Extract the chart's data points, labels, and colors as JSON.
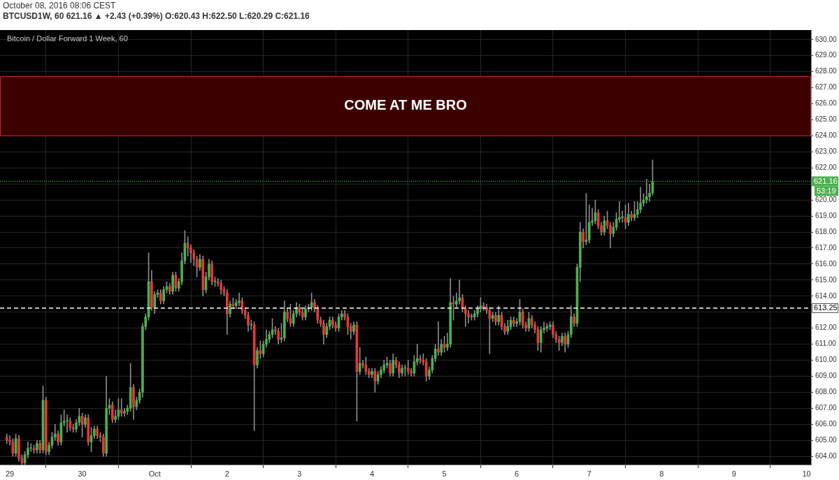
{
  "chart_data": {
    "type": "candlestick",
    "title": "Bitcoin / Dollar Forward 1 Week, 60",
    "subtitle": "BTCUSD1W, 60  621.16 ▲ +2.43 (+0.39%) O:620.43 H:622.50 L:620.29 C:621.16",
    "annotations": [
      "October 08, 2016 08:06 CEST",
      "53:19"
    ],
    "grid": true,
    "xlim": [
      "2016-09-28T20:45",
      "2016-10-10T01:30"
    ],
    "xticks": [
      {
        "value": "2016-09-29",
        "label": "29"
      },
      {
        "value": "2016-09-30",
        "label": "30"
      },
      {
        "value": "2016-10-01",
        "label": "Oct"
      },
      {
        "value": "2016-10-02",
        "label": "2"
      },
      {
        "value": "2016-10-03",
        "label": "3"
      },
      {
        "value": "2016-10-04",
        "label": "4"
      },
      {
        "value": "2016-10-05",
        "label": "5"
      },
      {
        "value": "2016-10-06",
        "label": "6"
      },
      {
        "value": "2016-10-07",
        "label": "7"
      },
      {
        "value": "2016-10-08",
        "label": "8"
      },
      {
        "value": "2016-10-09",
        "label": "9"
      },
      {
        "value": "2016-10-10",
        "label": "10"
      }
    ],
    "ylim": [
      603.45,
      630.6
    ],
    "yticks": [
      {
        "value": 604,
        "label": "604.00"
      },
      {
        "value": 605,
        "label": "605.00"
      },
      {
        "value": 606,
        "label": "606.00"
      },
      {
        "value": 607,
        "label": "607.00"
      },
      {
        "value": 608,
        "label": "608.00"
      },
      {
        "value": 609,
        "label": "609.00"
      },
      {
        "value": 610,
        "label": "610.00"
      },
      {
        "value": 611,
        "label": "611.00"
      },
      {
        "value": 612,
        "label": "612.00"
      },
      {
        "value": 613,
        "label": null
      },
      {
        "value": 614,
        "label": "614.00"
      },
      {
        "value": 615,
        "label": "615.00"
      },
      {
        "value": 616,
        "label": "616.00"
      },
      {
        "value": 617,
        "label": "617.00"
      },
      {
        "value": 618,
        "label": "618.00"
      },
      {
        "value": 619,
        "label": "619.00"
      },
      {
        "value": 620,
        "label": "620.00"
      },
      {
        "value": 621,
        "label": null
      },
      {
        "value": 622,
        "label": "622.00"
      },
      {
        "value": 623,
        "label": "623.00"
      },
      {
        "value": 624,
        "label": "624.00"
      },
      {
        "value": 625,
        "label": "625.00"
      },
      {
        "value": 626,
        "label": "626.00"
      },
      {
        "value": 627,
        "label": "627.00"
      },
      {
        "value": 628,
        "label": "628.00"
      },
      {
        "value": 629,
        "label": "629.00"
      },
      {
        "value": 630,
        "label": "630.00"
      }
    ],
    "bands": [
      {
        "axis": "y",
        "from": 624,
        "to": 627.7,
        "label": "COME AT ME BRO",
        "color": "#3d0000"
      }
    ],
    "ref_lines": [
      {
        "axis": "y",
        "value": 613.25,
        "label": "613.25",
        "color": "#ffffff",
        "line_style": "dashed"
      },
      {
        "axis": "y",
        "value": 621.16,
        "label": "621.16",
        "color": "#4caf50",
        "line_style": "dotted"
      }
    ],
    "x": [
      "2016-09-28T23:00",
      "2016-09-29T00:00",
      "2016-09-29T01:00",
      "2016-09-29T02:00",
      "2016-09-29T03:00",
      "2016-09-29T04:00",
      "2016-09-29T05:00",
      "2016-09-29T06:00",
      "2016-09-29T07:00",
      "2016-09-29T08:00",
      "2016-09-29T09:00",
      "2016-09-29T10:00",
      "2016-09-29T11:00",
      "2016-09-29T12:00",
      "2016-09-29T13:00",
      "2016-09-29T14:00",
      "2016-09-29T15:00",
      "2016-09-29T16:00",
      "2016-09-29T17:00",
      "2016-09-29T18:00",
      "2016-09-29T19:00",
      "2016-09-29T20:00",
      "2016-09-29T21:00",
      "2016-09-29T22:00",
      "2016-09-29T23:00",
      "2016-09-30T00:00",
      "2016-09-30T01:00",
      "2016-09-30T02:00",
      "2016-09-30T03:00",
      "2016-09-30T04:00",
      "2016-09-30T05:00",
      "2016-09-30T06:00",
      "2016-09-30T07:00",
      "2016-09-30T08:00",
      "2016-09-30T09:00",
      "2016-09-30T10:00",
      "2016-09-30T11:00",
      "2016-09-30T12:00",
      "2016-09-30T13:00",
      "2016-09-30T14:00",
      "2016-09-30T15:00",
      "2016-09-30T16:00",
      "2016-09-30T17:00",
      "2016-09-30T18:00",
      "2016-09-30T19:00",
      "2016-09-30T20:00",
      "2016-09-30T21:00",
      "2016-09-30T22:00",
      "2016-09-30T23:00",
      "2016-10-01T00:00",
      "2016-10-01T01:00",
      "2016-10-01T02:00",
      "2016-10-01T03:00",
      "2016-10-01T04:00",
      "2016-10-01T05:00",
      "2016-10-01T06:00",
      "2016-10-01T07:00",
      "2016-10-01T08:00",
      "2016-10-01T09:00",
      "2016-10-01T10:00",
      "2016-10-01T11:00",
      "2016-10-01T12:00",
      "2016-10-01T13:00",
      "2016-10-01T14:00",
      "2016-10-01T15:00",
      "2016-10-01T16:00",
      "2016-10-01T17:00",
      "2016-10-01T18:00",
      "2016-10-01T19:00",
      "2016-10-01T20:00",
      "2016-10-01T21:00",
      "2016-10-01T22:00",
      "2016-10-01T23:00",
      "2016-10-02T00:00",
      "2016-10-02T01:00",
      "2016-10-02T02:00",
      "2016-10-02T03:00",
      "2016-10-02T04:00",
      "2016-10-02T05:00",
      "2016-10-02T06:00",
      "2016-10-02T07:00",
      "2016-10-02T08:00",
      "2016-10-02T09:00",
      "2016-10-02T10:00",
      "2016-10-02T11:00",
      "2016-10-02T12:00",
      "2016-10-02T13:00",
      "2016-10-02T14:00",
      "2016-10-02T15:00",
      "2016-10-02T16:00",
      "2016-10-02T17:00",
      "2016-10-02T18:00",
      "2016-10-02T19:00",
      "2016-10-02T20:00",
      "2016-10-02T21:00",
      "2016-10-02T22:00",
      "2016-10-02T23:00",
      "2016-10-03T00:00",
      "2016-10-03T01:00",
      "2016-10-03T02:00",
      "2016-10-03T03:00",
      "2016-10-03T04:00",
      "2016-10-03T05:00",
      "2016-10-03T06:00",
      "2016-10-03T07:00",
      "2016-10-03T08:00",
      "2016-10-03T09:00",
      "2016-10-03T10:00",
      "2016-10-03T11:00",
      "2016-10-03T12:00",
      "2016-10-03T13:00",
      "2016-10-03T14:00",
      "2016-10-03T15:00",
      "2016-10-03T16:00",
      "2016-10-03T17:00",
      "2016-10-03T18:00",
      "2016-10-03T19:00",
      "2016-10-03T20:00",
      "2016-10-03T21:00",
      "2016-10-03T22:00",
      "2016-10-03T23:00",
      "2016-10-04T00:00",
      "2016-10-04T01:00",
      "2016-10-04T02:00",
      "2016-10-04T03:00",
      "2016-10-04T04:00",
      "2016-10-04T05:00",
      "2016-10-04T06:00",
      "2016-10-04T07:00",
      "2016-10-04T08:00",
      "2016-10-04T09:00",
      "2016-10-04T10:00",
      "2016-10-04T11:00",
      "2016-10-04T12:00",
      "2016-10-04T13:00",
      "2016-10-04T14:00",
      "2016-10-04T15:00",
      "2016-10-04T16:00",
      "2016-10-04T17:00",
      "2016-10-04T18:00",
      "2016-10-04T19:00",
      "2016-10-04T20:00",
      "2016-10-04T21:00",
      "2016-10-04T22:00",
      "2016-10-04T23:00",
      "2016-10-05T00:00",
      "2016-10-05T01:00",
      "2016-10-05T02:00",
      "2016-10-05T03:00",
      "2016-10-05T04:00",
      "2016-10-05T05:00",
      "2016-10-05T06:00",
      "2016-10-05T07:00",
      "2016-10-05T08:00",
      "2016-10-05T09:00",
      "2016-10-05T10:00",
      "2016-10-05T11:00",
      "2016-10-05T12:00",
      "2016-10-05T13:00",
      "2016-10-05T14:00",
      "2016-10-05T15:00",
      "2016-10-05T16:00",
      "2016-10-05T17:00",
      "2016-10-05T18:00",
      "2016-10-05T19:00",
      "2016-10-05T20:00",
      "2016-10-05T21:00",
      "2016-10-05T22:00",
      "2016-10-05T23:00",
      "2016-10-06T00:00",
      "2016-10-06T01:00",
      "2016-10-06T02:00",
      "2016-10-06T03:00",
      "2016-10-06T04:00",
      "2016-10-06T05:00",
      "2016-10-06T06:00",
      "2016-10-06T07:00",
      "2016-10-06T08:00",
      "2016-10-06T09:00",
      "2016-10-06T10:00",
      "2016-10-06T11:00",
      "2016-10-06T12:00",
      "2016-10-06T13:00",
      "2016-10-06T14:00",
      "2016-10-06T15:00",
      "2016-10-06T16:00",
      "2016-10-06T17:00",
      "2016-10-06T18:00",
      "2016-10-06T19:00",
      "2016-10-06T20:00",
      "2016-10-06T21:00",
      "2016-10-06T22:00",
      "2016-10-06T23:00",
      "2016-10-07T00:00",
      "2016-10-07T01:00",
      "2016-10-07T02:00",
      "2016-10-07T03:00",
      "2016-10-07T04:00",
      "2016-10-07T05:00",
      "2016-10-07T06:00",
      "2016-10-07T07:00",
      "2016-10-07T08:00",
      "2016-10-07T09:00",
      "2016-10-07T10:00",
      "2016-10-07T11:00",
      "2016-10-07T12:00",
      "2016-10-07T13:00",
      "2016-10-07T14:00",
      "2016-10-07T15:00",
      "2016-10-07T16:00",
      "2016-10-07T17:00",
      "2016-10-07T18:00",
      "2016-10-07T19:00",
      "2016-10-07T20:00",
      "2016-10-07T21:00"
    ],
    "ohlc": [
      [
        605.2,
        605.4,
        604.8,
        605.0
      ],
      [
        605.0,
        605.3,
        604.7,
        604.9
      ],
      [
        604.9,
        605.1,
        604.0,
        604.2
      ],
      [
        604.2,
        605.4,
        604.0,
        605.1
      ],
      [
        605.1,
        605.3,
        603.7,
        603.9
      ],
      [
        603.9,
        604.1,
        603.5,
        603.6
      ],
      [
        603.6,
        604.3,
        603.5,
        604.1
      ],
      [
        604.1,
        604.9,
        603.9,
        604.5
      ],
      [
        604.5,
        604.8,
        604.3,
        604.5
      ],
      [
        604.5,
        604.7,
        604.2,
        604.4
      ],
      [
        604.4,
        605.0,
        604.2,
        604.8
      ],
      [
        604.8,
        605.0,
        604.2,
        604.4
      ],
      [
        604.4,
        608.4,
        604.2,
        607.5
      ],
      [
        607.5,
        607.7,
        604.1,
        604.3
      ],
      [
        604.3,
        604.9,
        604.1,
        604.7
      ],
      [
        604.7,
        605.5,
        604.5,
        605.2
      ],
      [
        605.2,
        606.0,
        605.0,
        605.4
      ],
      [
        605.4,
        605.6,
        604.7,
        604.9
      ],
      [
        604.9,
        606.6,
        604.7,
        606.1
      ],
      [
        606.1,
        606.9,
        605.9,
        606.2
      ],
      [
        606.2,
        606.6,
        605.5,
        606.2
      ],
      [
        606.2,
        606.4,
        605.6,
        605.8
      ],
      [
        605.8,
        606.0,
        605.5,
        605.7
      ],
      [
        605.7,
        606.3,
        605.5,
        606.1
      ],
      [
        606.1,
        607.0,
        605.9,
        606.5
      ],
      [
        606.5,
        606.7,
        605.2,
        606.0
      ],
      [
        606.0,
        606.6,
        605.8,
        606.4
      ],
      [
        606.4,
        606.6,
        604.7,
        604.9
      ],
      [
        604.9,
        605.8,
        604.3,
        605.3
      ],
      [
        605.3,
        605.9,
        605.1,
        605.7
      ],
      [
        605.7,
        605.9,
        605.1,
        605.3
      ],
      [
        605.3,
        605.5,
        604.9,
        605.2
      ],
      [
        605.2,
        605.4,
        604.0,
        604.2
      ],
      [
        604.2,
        609.0,
        604.0,
        607.0
      ],
      [
        607.0,
        607.6,
        606.6,
        607.2
      ],
      [
        607.2,
        607.4,
        606.1,
        606.3
      ],
      [
        606.3,
        606.9,
        606.1,
        606.5
      ],
      [
        606.5,
        607.6,
        606.3,
        606.9
      ],
      [
        606.9,
        607.6,
        606.5,
        606.7
      ],
      [
        606.7,
        607.0,
        606.5,
        606.8
      ],
      [
        606.8,
        607.2,
        606.6,
        607.0
      ],
      [
        607.0,
        609.8,
        606.8,
        608.3
      ],
      [
        608.3,
        608.5,
        606.3,
        607.1
      ],
      [
        607.1,
        607.7,
        606.9,
        607.5
      ],
      [
        607.5,
        608.2,
        607.3,
        608.0
      ],
      [
        608.0,
        612.3,
        607.7,
        612.1
      ],
      [
        612.1,
        612.9,
        611.9,
        612.7
      ],
      [
        612.7,
        616.7,
        612.5,
        614.9
      ],
      [
        614.9,
        615.6,
        613.1,
        613.3
      ],
      [
        613.3,
        614.3,
        612.9,
        614.1
      ],
      [
        614.1,
        614.4,
        613.9,
        614.2
      ],
      [
        614.2,
        614.4,
        613.5,
        613.7
      ],
      [
        613.7,
        614.6,
        613.5,
        614.4
      ],
      [
        614.4,
        614.9,
        614.2,
        614.6
      ],
      [
        614.6,
        614.8,
        614.1,
        614.3
      ],
      [
        614.3,
        615.5,
        614.1,
        615.3
      ],
      [
        615.3,
        615.5,
        614.3,
        614.5
      ],
      [
        614.5,
        615.1,
        614.3,
        614.9
      ],
      [
        614.9,
        616.7,
        614.7,
        616.2
      ],
      [
        616.2,
        618.1,
        616.0,
        617.3
      ],
      [
        617.3,
        617.7,
        616.5,
        617.0
      ],
      [
        617.0,
        617.2,
        616.1,
        616.7
      ],
      [
        616.7,
        616.9,
        615.9,
        616.3
      ],
      [
        616.3,
        616.5,
        615.2,
        615.8
      ],
      [
        615.8,
        616.6,
        615.6,
        616.3
      ],
      [
        616.3,
        616.5,
        614.0,
        614.4
      ],
      [
        614.4,
        615.5,
        614.2,
        615.2
      ],
      [
        615.2,
        616.3,
        615.0,
        616.0
      ],
      [
        616.0,
        616.2,
        614.7,
        614.9
      ],
      [
        614.9,
        615.2,
        614.6,
        614.9
      ],
      [
        614.9,
        615.1,
        614.6,
        614.8
      ],
      [
        614.8,
        615.0,
        614.1,
        614.4
      ],
      [
        614.4,
        614.6,
        614.0,
        614.2
      ],
      [
        614.2,
        614.4,
        611.6,
        612.9
      ],
      [
        612.9,
        613.7,
        612.7,
        613.5
      ],
      [
        613.5,
        613.9,
        613.2,
        613.4
      ],
      [
        613.4,
        613.8,
        613.2,
        613.6
      ],
      [
        613.6,
        614.2,
        613.4,
        613.7
      ],
      [
        613.7,
        613.9,
        612.9,
        613.1
      ],
      [
        613.1,
        613.3,
        612.6,
        612.8
      ],
      [
        612.8,
        613.0,
        611.8,
        612.2
      ],
      [
        612.2,
        612.5,
        611.9,
        612.2
      ],
      [
        612.2,
        612.4,
        605.6,
        609.7
      ],
      [
        609.7,
        610.8,
        609.5,
        610.6
      ],
      [
        610.6,
        611.2,
        610.1,
        610.4
      ],
      [
        610.4,
        611.2,
        610.2,
        611.0
      ],
      [
        611.0,
        611.9,
        610.8,
        611.3
      ],
      [
        611.3,
        611.8,
        611.1,
        611.6
      ],
      [
        611.6,
        612.6,
        611.4,
        611.9
      ],
      [
        611.9,
        612.1,
        611.6,
        611.8
      ],
      [
        611.8,
        612.0,
        611.0,
        611.3
      ],
      [
        611.3,
        612.3,
        611.1,
        611.4
      ],
      [
        611.4,
        613.7,
        611.2,
        613.0
      ],
      [
        613.0,
        613.2,
        612.4,
        612.6
      ],
      [
        612.6,
        613.5,
        612.1,
        612.3
      ],
      [
        612.3,
        613.1,
        612.1,
        612.9
      ],
      [
        612.9,
        613.6,
        612.7,
        613.3
      ],
      [
        613.3,
        613.5,
        612.8,
        613.0
      ],
      [
        613.0,
        613.2,
        612.5,
        612.7
      ],
      [
        612.7,
        613.4,
        612.5,
        613.2
      ],
      [
        613.2,
        613.5,
        613.0,
        613.3
      ],
      [
        613.3,
        614.2,
        613.1,
        613.6
      ],
      [
        613.6,
        613.8,
        613.0,
        613.2
      ],
      [
        613.2,
        613.4,
        612.3,
        612.5
      ],
      [
        612.5,
        612.7,
        612.1,
        612.3
      ],
      [
        612.3,
        612.5,
        611.0,
        611.6
      ],
      [
        611.6,
        612.3,
        611.4,
        612.1
      ],
      [
        612.1,
        612.7,
        611.9,
        612.5
      ],
      [
        612.5,
        612.7,
        612.0,
        612.2
      ],
      [
        612.2,
        612.4,
        611.8,
        612.0
      ],
      [
        612.0,
        612.9,
        611.8,
        612.7
      ],
      [
        612.7,
        613.1,
        612.5,
        612.9
      ],
      [
        612.9,
        613.1,
        612.5,
        612.7
      ],
      [
        612.7,
        612.9,
        611.6,
        612.1
      ],
      [
        612.1,
        612.3,
        611.3,
        611.8
      ],
      [
        611.8,
        612.4,
        611.6,
        612.2
      ],
      [
        612.2,
        612.4,
        606.2,
        609.3
      ],
      [
        609.3,
        610.8,
        609.1,
        609.8
      ],
      [
        609.8,
        610.0,
        609.5,
        609.7
      ],
      [
        609.7,
        610.2,
        609.1,
        609.3
      ],
      [
        609.3,
        609.5,
        608.9,
        609.1
      ],
      [
        609.1,
        609.5,
        608.9,
        609.3
      ],
      [
        609.3,
        609.5,
        608.0,
        608.7
      ],
      [
        608.7,
        609.3,
        608.5,
        609.1
      ],
      [
        609.1,
        609.6,
        608.9,
        609.4
      ],
      [
        609.4,
        610.0,
        609.2,
        609.7
      ],
      [
        609.7,
        610.2,
        609.5,
        609.8
      ],
      [
        609.8,
        610.0,
        609.0,
        609.2
      ],
      [
        609.2,
        610.4,
        609.0,
        610.0
      ],
      [
        610.0,
        610.2,
        609.5,
        609.7
      ],
      [
        609.7,
        609.9,
        608.9,
        609.2
      ],
      [
        609.2,
        609.7,
        609.0,
        609.5
      ],
      [
        609.5,
        609.7,
        609.0,
        609.5
      ],
      [
        609.5,
        610.0,
        609.1,
        609.3
      ],
      [
        609.3,
        609.5,
        609.0,
        609.2
      ],
      [
        609.2,
        610.3,
        609.0,
        609.9
      ],
      [
        609.9,
        611.0,
        609.7,
        610.1
      ],
      [
        610.1,
        610.3,
        609.8,
        610.0
      ],
      [
        610.0,
        610.4,
        609.7,
        609.9
      ],
      [
        609.9,
        610.1,
        608.7,
        609.0
      ],
      [
        609.0,
        609.6,
        608.8,
        609.4
      ],
      [
        609.4,
        610.3,
        609.2,
        610.1
      ],
      [
        610.1,
        611.0,
        609.9,
        610.7
      ],
      [
        610.7,
        612.4,
        610.3,
        610.5
      ],
      [
        610.5,
        611.3,
        610.3,
        611.0
      ],
      [
        611.0,
        611.5,
        610.5,
        610.8
      ],
      [
        610.8,
        611.7,
        610.6,
        611.0
      ],
      [
        611.0,
        615.1,
        610.8,
        613.6
      ],
      [
        613.6,
        614.0,
        612.5,
        613.5
      ],
      [
        613.5,
        614.2,
        613.3,
        613.7
      ],
      [
        613.7,
        615.0,
        613.5,
        613.9
      ],
      [
        613.9,
        614.1,
        613.0,
        613.2
      ],
      [
        613.2,
        613.4,
        612.1,
        612.9
      ],
      [
        612.9,
        613.1,
        612.3,
        612.7
      ],
      [
        612.7,
        612.9,
        612.5,
        612.7
      ],
      [
        612.7,
        613.1,
        612.5,
        612.9
      ],
      [
        612.9,
        613.4,
        612.7,
        613.2
      ],
      [
        613.2,
        613.9,
        613.0,
        613.4
      ],
      [
        613.4,
        613.6,
        613.1,
        613.3
      ],
      [
        613.3,
        613.5,
        612.9,
        613.1
      ],
      [
        613.1,
        613.3,
        610.4,
        612.6
      ],
      [
        612.6,
        613.0,
        612.4,
        612.8
      ],
      [
        612.8,
        613.0,
        612.2,
        612.4
      ],
      [
        612.4,
        613.4,
        612.2,
        612.8
      ],
      [
        612.8,
        613.0,
        611.9,
        612.1
      ],
      [
        612.1,
        612.3,
        611.6,
        611.8
      ],
      [
        611.8,
        612.5,
        611.6,
        612.1
      ],
      [
        612.1,
        612.7,
        611.9,
        612.5
      ],
      [
        612.5,
        612.7,
        612.1,
        612.3
      ],
      [
        612.3,
        612.6,
        612.1,
        612.4
      ],
      [
        612.4,
        613.8,
        612.2,
        613.0
      ],
      [
        613.0,
        613.2,
        612.0,
        612.2
      ],
      [
        612.2,
        612.4,
        611.8,
        612.0
      ],
      [
        612.0,
        613.0,
        611.8,
        612.6
      ],
      [
        612.6,
        612.8,
        612.0,
        612.2
      ],
      [
        612.2,
        612.4,
        611.7,
        611.9
      ],
      [
        611.9,
        612.1,
        610.6,
        611.1
      ],
      [
        611.1,
        612.1,
        610.5,
        611.9
      ],
      [
        611.9,
        612.4,
        611.7,
        612.0
      ],
      [
        612.0,
        612.3,
        611.8,
        612.1
      ],
      [
        612.1,
        612.4,
        611.9,
        612.2
      ],
      [
        612.2,
        612.4,
        611.4,
        611.6
      ],
      [
        611.6,
        611.8,
        611.1,
        611.3
      ],
      [
        611.3,
        611.5,
        610.6,
        611.1
      ],
      [
        611.1,
        611.7,
        610.9,
        611.5
      ],
      [
        611.5,
        611.7,
        610.5,
        611.0
      ],
      [
        611.0,
        611.8,
        610.8,
        611.6
      ],
      [
        611.6,
        613.4,
        611.4,
        612.7
      ],
      [
        612.7,
        612.9,
        612.1,
        612.3
      ],
      [
        612.3,
        616.0,
        612.1,
        615.8
      ],
      [
        615.8,
        618.6,
        614.9,
        618.0
      ],
      [
        618.0,
        618.2,
        617.0,
        617.4
      ],
      [
        617.4,
        620.4,
        617.2,
        617.5
      ],
      [
        617.5,
        619.7,
        617.3,
        618.6
      ],
      [
        618.6,
        619.5,
        618.4,
        618.7
      ],
      [
        618.7,
        620.0,
        618.5,
        619.2
      ],
      [
        619.2,
        619.4,
        618.2,
        618.4
      ],
      [
        618.4,
        618.6,
        617.8,
        618.0
      ],
      [
        618.0,
        619.0,
        617.8,
        618.7
      ],
      [
        618.7,
        619.3,
        618.2,
        618.4
      ],
      [
        618.4,
        618.6,
        617.0,
        617.9
      ],
      [
        617.9,
        618.6,
        617.7,
        618.3
      ],
      [
        618.3,
        619.2,
        618.1,
        618.8
      ],
      [
        618.8,
        619.9,
        618.6,
        618.9
      ],
      [
        618.9,
        619.3,
        618.6,
        618.9
      ],
      [
        618.9,
        619.7,
        618.2,
        618.6
      ],
      [
        618.6,
        619.8,
        618.4,
        619.1
      ],
      [
        619.1,
        619.3,
        618.7,
        618.9
      ],
      [
        618.9,
        619.9,
        618.7,
        619.1
      ],
      [
        619.1,
        619.9,
        618.9,
        619.4
      ],
      [
        619.4,
        620.8,
        619.2,
        619.8
      ],
      [
        619.8,
        620.4,
        619.6,
        620.0
      ],
      [
        620.0,
        621.3,
        619.8,
        620.2
      ],
      [
        620.2,
        621.0,
        619.9,
        620.43
      ],
      [
        620.43,
        622.5,
        620.29,
        621.16
      ]
    ]
  }
}
